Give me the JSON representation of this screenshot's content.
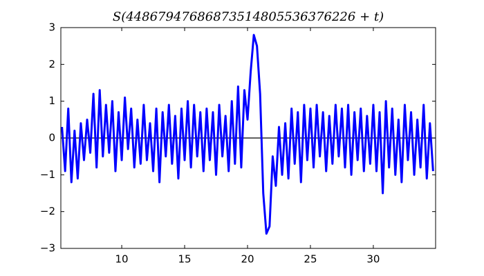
{
  "chart_data": {
    "type": "line",
    "title": "S(44867947686873514805536376226 + t)",
    "color": "#0000ff",
    "x": [
      5.25,
      5.5,
      5.75,
      6,
      6.25,
      6.5,
      6.75,
      7,
      7.25,
      7.5,
      7.75,
      8,
      8.25,
      8.5,
      8.75,
      9,
      9.25,
      9.5,
      9.75,
      10,
      10.25,
      10.5,
      10.75,
      11,
      11.25,
      11.5,
      11.75,
      12,
      12.25,
      12.5,
      12.75,
      13,
      13.25,
      13.5,
      13.75,
      14,
      14.25,
      14.5,
      14.75,
      15,
      15.25,
      15.5,
      15.75,
      16,
      16.25,
      16.5,
      16.75,
      17,
      17.25,
      17.5,
      17.75,
      18,
      18.25,
      18.5,
      18.75,
      19,
      19.25,
      19.5,
      19.75,
      20,
      20.25,
      20.5,
      20.75,
      21,
      21.25,
      21.5,
      21.75,
      22,
      22.25,
      22.5,
      22.75,
      23,
      23.25,
      23.5,
      23.75,
      24,
      24.25,
      24.5,
      24.75,
      25,
      25.25,
      25.5,
      25.75,
      26,
      26.25,
      26.5,
      26.75,
      27,
      27.25,
      27.5,
      27.75,
      28,
      28.25,
      28.5,
      28.75,
      29,
      29.25,
      29.5,
      29.75,
      30,
      30.25,
      30.5,
      30.75,
      31,
      31.25,
      31.5,
      31.75,
      32,
      32.25,
      32.5,
      32.75,
      33,
      33.25,
      33.5,
      33.75,
      34,
      34.25,
      34.5,
      34.75
    ],
    "values": [
      0.3,
      -0.9,
      0.8,
      -1.2,
      0.2,
      -1.1,
      0.4,
      -0.6,
      0.5,
      -0.4,
      1.2,
      -0.8,
      1.3,
      -0.5,
      0.9,
      -0.4,
      1.0,
      -0.9,
      0.7,
      -0.6,
      1.1,
      -0.3,
      0.8,
      -0.8,
      0.5,
      -0.7,
      0.9,
      -0.6,
      0.4,
      -0.9,
      0.8,
      -1.2,
      0.7,
      -0.5,
      0.9,
      -0.7,
      0.6,
      -1.1,
      0.8,
      -0.6,
      1.0,
      -0.8,
      0.9,
      -0.5,
      0.7,
      -0.9,
      0.8,
      -0.6,
      0.7,
      -1.0,
      0.9,
      -0.5,
      0.6,
      -0.9,
      1.0,
      -0.7,
      1.4,
      -0.8,
      1.3,
      0.5,
      1.8,
      2.8,
      2.5,
      1.2,
      -1.5,
      -2.6,
      -2.4,
      -0.5,
      -1.3,
      0.3,
      -1.0,
      0.4,
      -1.1,
      0.8,
      -0.7,
      0.7,
      -1.2,
      0.9,
      -0.6,
      0.8,
      -0.8,
      0.9,
      -0.5,
      0.7,
      -0.9,
      0.6,
      -0.7,
      0.9,
      -0.5,
      0.8,
      -0.8,
      0.9,
      -1.0,
      0.7,
      -0.6,
      0.8,
      -0.9,
      0.6,
      -0.7,
      0.9,
      -0.9,
      0.7,
      -1.5,
      1.0,
      -0.8,
      0.8,
      -1.0,
      0.5,
      -1.2,
      0.9,
      -0.6,
      0.7,
      -1.0,
      0.5,
      -0.8,
      0.9,
      -1.1,
      0.4,
      -0.9
    ],
    "hline": 0,
    "xlim": [
      5.16,
      34.95
    ],
    "ylim": [
      -3,
      3
    ],
    "xticks": [
      10,
      15,
      20,
      25,
      30
    ],
    "yticks": [
      {
        "value": -3,
        "label": "−3"
      },
      {
        "value": -2,
        "label": "−2"
      },
      {
        "value": -1,
        "label": "−1"
      },
      0,
      1,
      2,
      3
    ]
  }
}
